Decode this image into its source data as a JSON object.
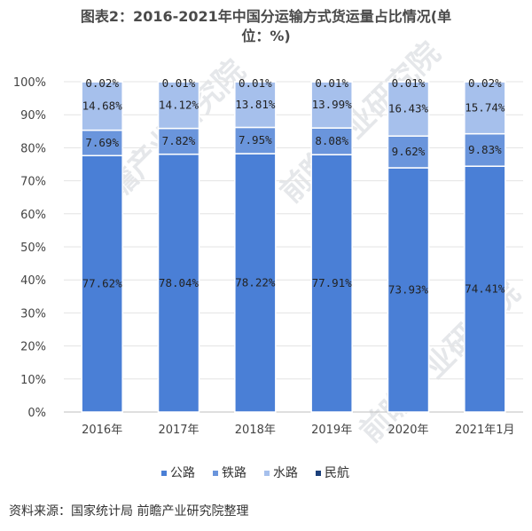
{
  "title_line1": "图表2：2016-2021年中国分运输方式货运量占比情况(单",
  "title_line2": "位：%)",
  "source": "资料来源：国家统计局 前瞻产业研究院整理",
  "watermark": "前瞻产业研究院",
  "colors": {
    "公路": "#4a7fd6",
    "铁路": "#6a95dc",
    "水路": "#a6c0ec",
    "民航": "#1b3f7a",
    "separator": "#ffffff",
    "grid": "#e3e3e3",
    "label_on_dark": "#222222"
  },
  "chart_data": {
    "type": "bar",
    "stacked": true,
    "categories": [
      "2016年",
      "2017年",
      "2018年",
      "2019年",
      "2020年",
      "2021年1月"
    ],
    "series": [
      {
        "name": "公路",
        "values": [
          77.62,
          78.04,
          78.22,
          77.91,
          73.93,
          74.41
        ],
        "labels": [
          "77.62%",
          "78.04%",
          "78.22%",
          "77.91%",
          "73.93%",
          "74.41%"
        ]
      },
      {
        "name": "铁路",
        "values": [
          7.69,
          7.82,
          7.95,
          8.08,
          9.62,
          9.83
        ],
        "labels": [
          "7.69%",
          "7.82%",
          "7.95%",
          "8.08%",
          "9.62%",
          "9.83%"
        ]
      },
      {
        "name": "水路",
        "values": [
          14.68,
          14.12,
          13.81,
          13.99,
          16.43,
          15.74
        ],
        "labels": [
          "14.68%",
          "14.12%",
          "13.81%",
          "13.99%",
          "16.43%",
          "15.74%"
        ]
      },
      {
        "name": "民航",
        "values": [
          0.02,
          0.01,
          0.01,
          0.01,
          0.01,
          0.02
        ],
        "labels": [
          "0.02%",
          "0.01%",
          "0.01%",
          "0.01%",
          "0.01%",
          "0.02%"
        ]
      }
    ],
    "yticks": [
      "0%",
      "10%",
      "20%",
      "30%",
      "40%",
      "50%",
      "60%",
      "70%",
      "80%",
      "90%",
      "100%"
    ],
    "ylim": [
      0,
      100
    ],
    "grid": true,
    "legend_position": "bottom"
  }
}
